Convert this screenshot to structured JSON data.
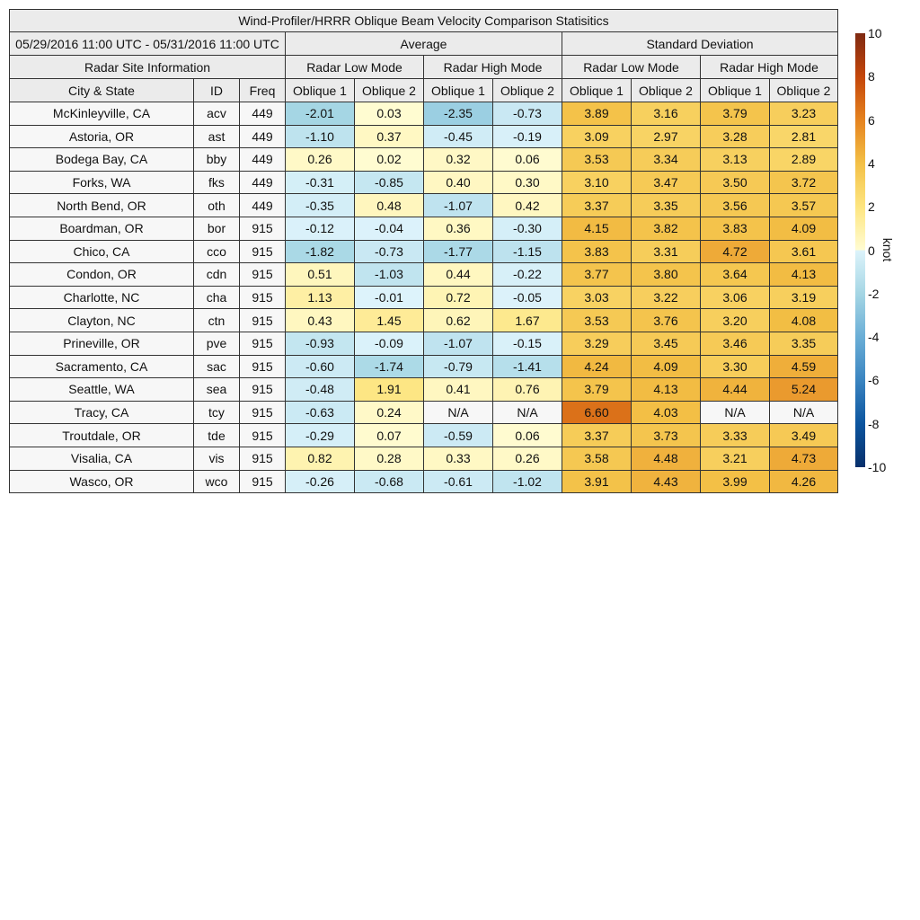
{
  "chart_data": {
    "type": "heatmap",
    "title": "Wind-Profiler/HRRR Oblique Beam Velocity Comparison Statisitics",
    "date_range": "05/29/2016 11:00 UTC - 05/31/2016 11:00 UTC",
    "groups": [
      "Average",
      "Standard Deviation"
    ],
    "site_info_label": "Radar Site Information",
    "modes": [
      "Radar Low Mode",
      "Radar High Mode",
      "Radar Low Mode",
      "Radar High Mode"
    ],
    "columns": [
      "City & State",
      "ID",
      "Freq",
      "Oblique 1",
      "Oblique 2",
      "Oblique 1",
      "Oblique 2",
      "Oblique 1",
      "Oblique 2",
      "Oblique 1",
      "Oblique 2"
    ],
    "rows": [
      [
        "McKinleyville, CA",
        "acv",
        "449",
        "-2.01",
        "0.03",
        "-2.35",
        "-0.73",
        "3.89",
        "3.16",
        "3.79",
        "3.23"
      ],
      [
        "Astoria, OR",
        "ast",
        "449",
        "-1.10",
        "0.37",
        "-0.45",
        "-0.19",
        "3.09",
        "2.97",
        "3.28",
        "2.81"
      ],
      [
        "Bodega Bay, CA",
        "bby",
        "449",
        "0.26",
        "0.02",
        "0.32",
        "0.06",
        "3.53",
        "3.34",
        "3.13",
        "2.89"
      ],
      [
        "Forks, WA",
        "fks",
        "449",
        "-0.31",
        "-0.85",
        "0.40",
        "0.30",
        "3.10",
        "3.47",
        "3.50",
        "3.72"
      ],
      [
        "North Bend, OR",
        "oth",
        "449",
        "-0.35",
        "0.48",
        "-1.07",
        "0.42",
        "3.37",
        "3.35",
        "3.56",
        "3.57"
      ],
      [
        "Boardman, OR",
        "bor",
        "915",
        "-0.12",
        "-0.04",
        "0.36",
        "-0.30",
        "4.15",
        "3.82",
        "3.83",
        "4.09"
      ],
      [
        "Chico, CA",
        "cco",
        "915",
        "-1.82",
        "-0.73",
        "-1.77",
        "-1.15",
        "3.83",
        "3.31",
        "4.72",
        "3.61"
      ],
      [
        "Condon, OR",
        "cdn",
        "915",
        "0.51",
        "-1.03",
        "0.44",
        "-0.22",
        "3.77",
        "3.80",
        "3.64",
        "4.13"
      ],
      [
        "Charlotte, NC",
        "cha",
        "915",
        "1.13",
        "-0.01",
        "0.72",
        "-0.05",
        "3.03",
        "3.22",
        "3.06",
        "3.19"
      ],
      [
        "Clayton, NC",
        "ctn",
        "915",
        "0.43",
        "1.45",
        "0.62",
        "1.67",
        "3.53",
        "3.76",
        "3.20",
        "4.08"
      ],
      [
        "Prineville, OR",
        "pve",
        "915",
        "-0.93",
        "-0.09",
        "-1.07",
        "-0.15",
        "3.29",
        "3.45",
        "3.46",
        "3.35"
      ],
      [
        "Sacramento, CA",
        "sac",
        "915",
        "-0.60",
        "-1.74",
        "-0.79",
        "-1.41",
        "4.24",
        "4.09",
        "3.30",
        "4.59"
      ],
      [
        "Seattle, WA",
        "sea",
        "915",
        "-0.48",
        "1.91",
        "0.41",
        "0.76",
        "3.79",
        "4.13",
        "4.44",
        "5.24"
      ],
      [
        "Tracy, CA",
        "tcy",
        "915",
        "-0.63",
        "0.24",
        "N/A",
        "N/A",
        "6.60",
        "4.03",
        "N/A",
        "N/A"
      ],
      [
        "Troutdale, OR",
        "tde",
        "915",
        "-0.29",
        "0.07",
        "-0.59",
        "0.06",
        "3.37",
        "3.73",
        "3.33",
        "3.49"
      ],
      [
        "Visalia, CA",
        "vis",
        "915",
        "0.82",
        "0.28",
        "0.33",
        "0.26",
        "3.58",
        "4.48",
        "3.21",
        "4.73"
      ],
      [
        "Wasco, OR",
        "wco",
        "915",
        "-0.26",
        "-0.68",
        "-0.61",
        "-1.02",
        "3.91",
        "4.43",
        "3.99",
        "4.26"
      ]
    ],
    "colorbar": {
      "label": "knot",
      "range": [
        -10,
        10
      ],
      "ticks": [
        "10",
        "8",
        "6",
        "4",
        "2",
        "0",
        "-2",
        "-4",
        "-6",
        "-8",
        "-10"
      ],
      "colors_positive": [
        "#fffcd2",
        "#fde580",
        "#f3c046",
        "#e5831f",
        "#c4460a",
        "#7f2a12"
      ],
      "colors_negative": [
        "#ddf3fb",
        "#a5d6e4",
        "#6aaed6",
        "#3a84c0",
        "#0c559f",
        "#08306b"
      ]
    },
    "na_color": "#f7f7f7"
  }
}
